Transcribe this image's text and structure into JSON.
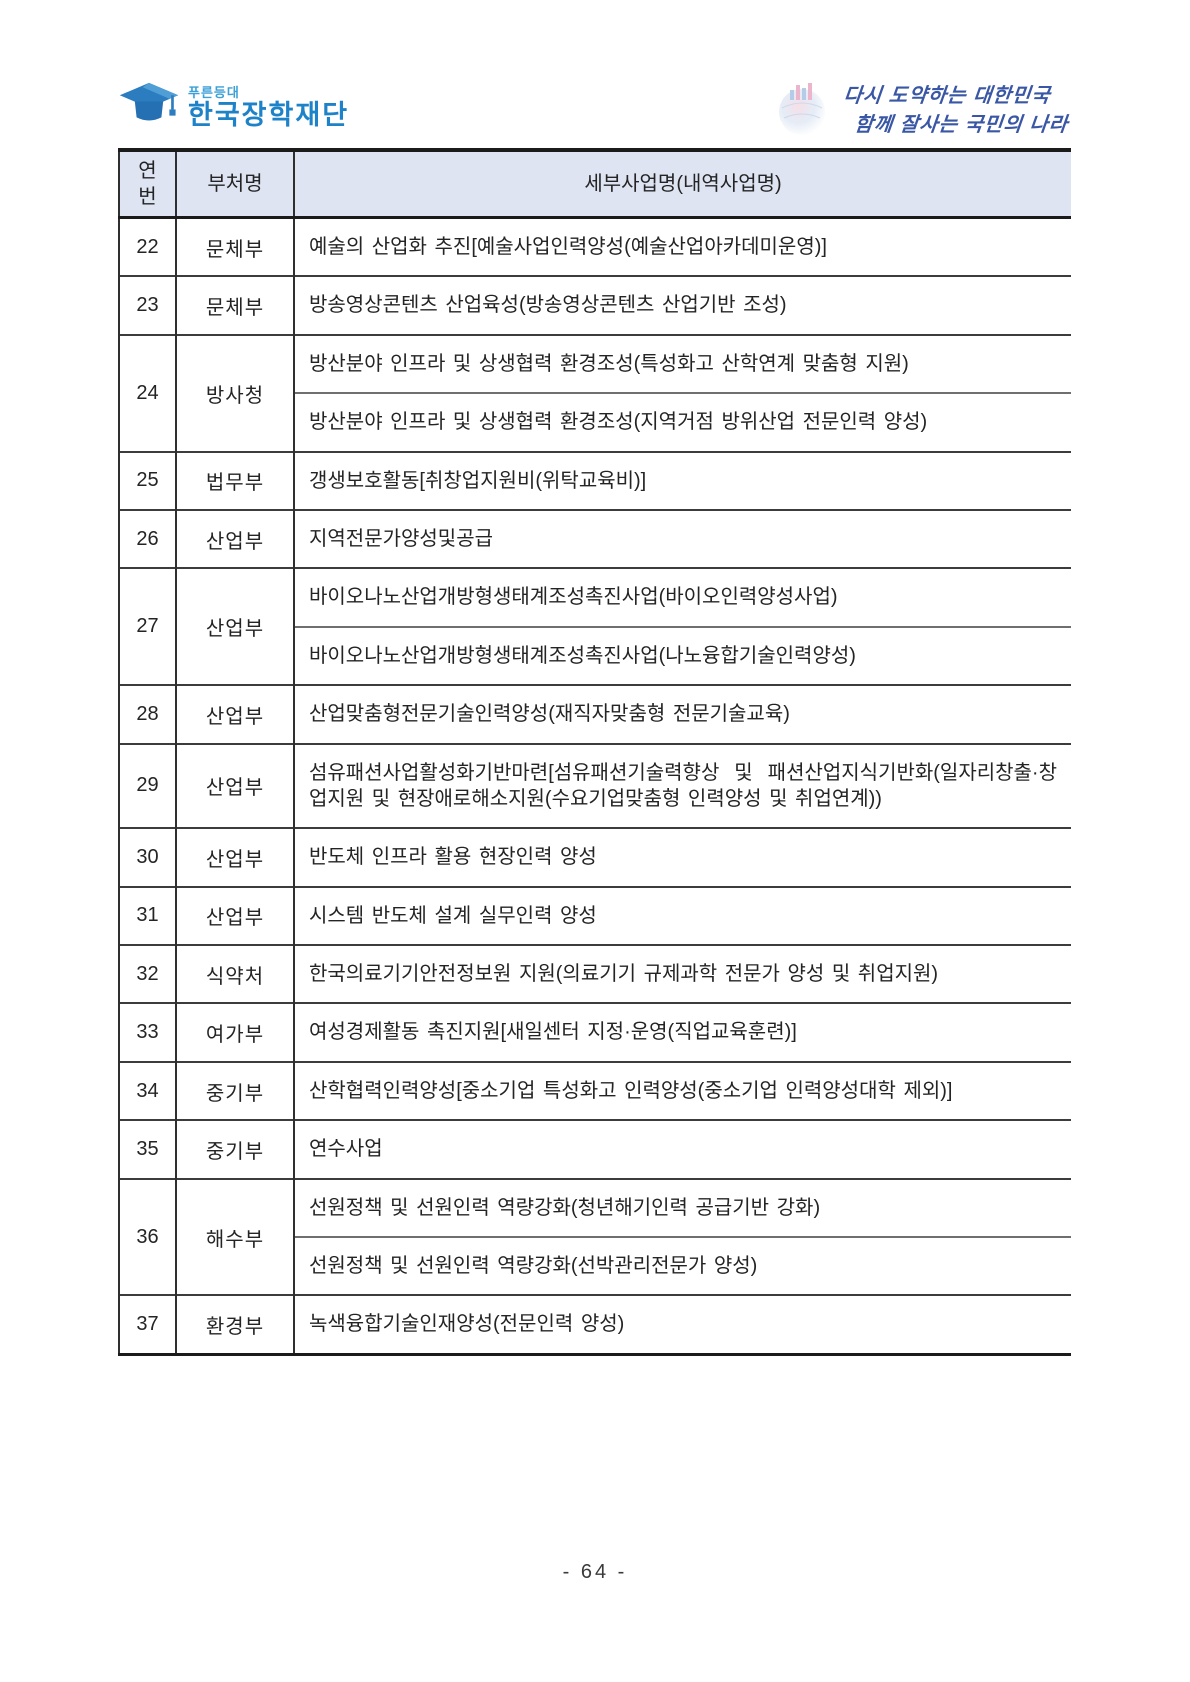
{
  "header_logos": {
    "foundation": {
      "top_label": "푸른등대",
      "name": "한국장학재단"
    },
    "slogan": {
      "line1": "다시 도약하는 대한민국",
      "line2": "함께 잘사는 국민의 나라"
    }
  },
  "table": {
    "columns": [
      "연번",
      "부처명",
      "세부사업명(내역사업명)"
    ],
    "header_bg": "#dee4f2",
    "rows": [
      {
        "no": "22",
        "ministry": "문체부",
        "projects": [
          "예술의 산업화 추진[예술사업인력양성(예술산업아카데미운영)]"
        ]
      },
      {
        "no": "23",
        "ministry": "문체부",
        "projects": [
          "방송영상콘텐츠 산업육성(방송영상콘텐츠 산업기반 조성)"
        ]
      },
      {
        "no": "24",
        "ministry": "방사청",
        "projects": [
          "방산분야 인프라 및 상생협력 환경조성(특성화고 산학연계 맞춤형 지원)",
          "방산분야 인프라 및 상생협력 환경조성(지역거점 방위산업 전문인력 양성)"
        ]
      },
      {
        "no": "25",
        "ministry": "법무부",
        "projects": [
          "갱생보호활동[취창업지원비(위탁교육비)]"
        ]
      },
      {
        "no": "26",
        "ministry": "산업부",
        "projects": [
          "지역전문가양성및공급"
        ]
      },
      {
        "no": "27",
        "ministry": "산업부",
        "projects": [
          "바이오나노산업개방형생태계조성촉진사업(바이오인력양성사업)",
          "바이오나노산업개방형생태계조성촉진사업(나노융합기술인력양성)"
        ]
      },
      {
        "no": "28",
        "ministry": "산업부",
        "projects": [
          "산업맞춤형전문기술인력양성(재직자맞춤형 전문기술교육)"
        ]
      },
      {
        "no": "29",
        "ministry": "산업부",
        "projects": [
          "섬유패션사업활성화기반마련[섬유패션기술력향상 및 패션산업지식기반화(일자리창출·창업지원 및 현장애로해소지원(수요기업맞춤형 인력양성 및 취업연계))"
        ]
      },
      {
        "no": "30",
        "ministry": "산업부",
        "projects": [
          "반도체 인프라 활용 현장인력 양성"
        ]
      },
      {
        "no": "31",
        "ministry": "산업부",
        "projects": [
          "시스템 반도체 설계 실무인력 양성"
        ]
      },
      {
        "no": "32",
        "ministry": "식약처",
        "projects": [
          "한국의료기기안전정보원 지원(의료기기 규제과학 전문가 양성 및 취업지원)"
        ]
      },
      {
        "no": "33",
        "ministry": "여가부",
        "projects": [
          "여성경제활동 촉진지원[새일센터 지정·운영(직업교육훈련)]"
        ]
      },
      {
        "no": "34",
        "ministry": "중기부",
        "projects": [
          "산학협력인력양성[중소기업 특성화고 인력양성(중소기업 인력양성대학 제외)]"
        ]
      },
      {
        "no": "35",
        "ministry": "중기부",
        "projects": [
          "연수사업"
        ]
      },
      {
        "no": "36",
        "ministry": "해수부",
        "projects": [
          "선원정책 및 선원인력 역량강화(청년해기인력 공급기반 강화)",
          "선원정책 및 선원인력 역량강화(선박관리전문가 양성)"
        ]
      },
      {
        "no": "37",
        "ministry": "환경부",
        "projects": [
          "녹색융합기술인재양성(전문인력 양성)"
        ]
      }
    ]
  },
  "page": {
    "number_label": "- 64 -"
  }
}
